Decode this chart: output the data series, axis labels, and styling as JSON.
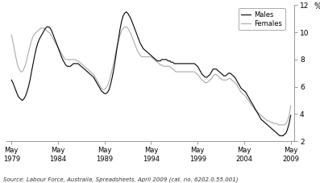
{
  "title": "",
  "ylabel": "%",
  "source_text": "Source: Labour Force, Australia, Spreadsheets, April 2009 (cat. no. 6202.0.55.001)",
  "xlim_start": 1978.9,
  "xlim_end": 2009.8,
  "ylim": [
    2,
    12
  ],
  "yticks": [
    2,
    4,
    6,
    8,
    10,
    12
  ],
  "xtick_labels": [
    "May\n1979",
    "May\n1984",
    "May\n1989",
    "May\n1994",
    "May\n1999",
    "May\n2004",
    "May\n2009"
  ],
  "xtick_positions": [
    1979.42,
    1984.42,
    1989.42,
    1994.42,
    1999.42,
    2004.42,
    2009.42
  ],
  "legend_labels": [
    "Males",
    "Females"
  ],
  "male_color": "#000000",
  "female_color": "#aaaaaa",
  "background_color": "#ffffff",
  "males": [
    [
      1979.42,
      6.5
    ],
    [
      1979.58,
      6.3
    ],
    [
      1979.75,
      6.0
    ],
    [
      1979.92,
      5.7
    ],
    [
      1980.08,
      5.4
    ],
    [
      1980.25,
      5.2
    ],
    [
      1980.42,
      5.1
    ],
    [
      1980.58,
      5.0
    ],
    [
      1980.75,
      5.1
    ],
    [
      1980.92,
      5.3
    ],
    [
      1981.08,
      5.6
    ],
    [
      1981.25,
      6.0
    ],
    [
      1981.42,
      6.5
    ],
    [
      1981.58,
      7.1
    ],
    [
      1981.75,
      7.7
    ],
    [
      1981.92,
      8.3
    ],
    [
      1982.08,
      8.8
    ],
    [
      1982.25,
      9.2
    ],
    [
      1982.42,
      9.5
    ],
    [
      1982.58,
      9.7
    ],
    [
      1982.75,
      9.9
    ],
    [
      1982.92,
      10.1
    ],
    [
      1983.08,
      10.3
    ],
    [
      1983.25,
      10.4
    ],
    [
      1983.42,
      10.4
    ],
    [
      1983.58,
      10.3
    ],
    [
      1983.75,
      10.1
    ],
    [
      1983.92,
      9.8
    ],
    [
      1984.08,
      9.5
    ],
    [
      1984.25,
      9.2
    ],
    [
      1984.42,
      8.9
    ],
    [
      1984.58,
      8.6
    ],
    [
      1984.75,
      8.3
    ],
    [
      1984.92,
      8.0
    ],
    [
      1985.08,
      7.8
    ],
    [
      1985.25,
      7.6
    ],
    [
      1985.42,
      7.5
    ],
    [
      1985.58,
      7.5
    ],
    [
      1985.75,
      7.5
    ],
    [
      1985.92,
      7.6
    ],
    [
      1986.08,
      7.7
    ],
    [
      1986.25,
      7.7
    ],
    [
      1986.42,
      7.7
    ],
    [
      1986.58,
      7.7
    ],
    [
      1986.75,
      7.6
    ],
    [
      1986.92,
      7.5
    ],
    [
      1987.08,
      7.4
    ],
    [
      1987.25,
      7.3
    ],
    [
      1987.42,
      7.2
    ],
    [
      1987.58,
      7.1
    ],
    [
      1987.75,
      7.0
    ],
    [
      1987.92,
      6.9
    ],
    [
      1988.08,
      6.8
    ],
    [
      1988.25,
      6.7
    ],
    [
      1988.42,
      6.5
    ],
    [
      1988.58,
      6.3
    ],
    [
      1988.75,
      6.1
    ],
    [
      1988.92,
      5.9
    ],
    [
      1989.08,
      5.7
    ],
    [
      1989.25,
      5.6
    ],
    [
      1989.42,
      5.5
    ],
    [
      1989.58,
      5.5
    ],
    [
      1989.75,
      5.6
    ],
    [
      1989.92,
      5.8
    ],
    [
      1990.08,
      6.2
    ],
    [
      1990.25,
      6.7
    ],
    [
      1990.42,
      7.3
    ],
    [
      1990.58,
      8.0
    ],
    [
      1990.75,
      8.8
    ],
    [
      1990.92,
      9.5
    ],
    [
      1991.08,
      10.2
    ],
    [
      1991.25,
      10.8
    ],
    [
      1991.42,
      11.2
    ],
    [
      1991.58,
      11.4
    ],
    [
      1991.75,
      11.5
    ],
    [
      1991.92,
      11.4
    ],
    [
      1992.08,
      11.2
    ],
    [
      1992.25,
      11.0
    ],
    [
      1992.42,
      10.7
    ],
    [
      1992.58,
      10.4
    ],
    [
      1992.75,
      10.1
    ],
    [
      1992.92,
      9.8
    ],
    [
      1993.08,
      9.5
    ],
    [
      1993.25,
      9.2
    ],
    [
      1993.42,
      9.0
    ],
    [
      1993.58,
      8.8
    ],
    [
      1993.75,
      8.7
    ],
    [
      1993.92,
      8.6
    ],
    [
      1994.08,
      8.5
    ],
    [
      1994.25,
      8.4
    ],
    [
      1994.42,
      8.3
    ],
    [
      1994.58,
      8.2
    ],
    [
      1994.75,
      8.1
    ],
    [
      1994.92,
      8.0
    ],
    [
      1995.08,
      7.9
    ],
    [
      1995.25,
      7.9
    ],
    [
      1995.42,
      7.9
    ],
    [
      1995.58,
      8.0
    ],
    [
      1995.75,
      8.0
    ],
    [
      1995.92,
      8.0
    ],
    [
      1996.08,
      8.0
    ],
    [
      1996.25,
      7.9
    ],
    [
      1996.42,
      7.9
    ],
    [
      1996.58,
      7.8
    ],
    [
      1996.75,
      7.8
    ],
    [
      1996.92,
      7.7
    ],
    [
      1997.08,
      7.7
    ],
    [
      1997.25,
      7.7
    ],
    [
      1997.42,
      7.7
    ],
    [
      1997.58,
      7.7
    ],
    [
      1997.75,
      7.7
    ],
    [
      1997.92,
      7.7
    ],
    [
      1998.08,
      7.7
    ],
    [
      1998.25,
      7.7
    ],
    [
      1998.42,
      7.7
    ],
    [
      1998.58,
      7.7
    ],
    [
      1998.75,
      7.7
    ],
    [
      1998.92,
      7.7
    ],
    [
      1999.08,
      7.7
    ],
    [
      1999.25,
      7.6
    ],
    [
      1999.42,
      7.5
    ],
    [
      1999.58,
      7.3
    ],
    [
      1999.75,
      7.1
    ],
    [
      1999.92,
      6.9
    ],
    [
      2000.08,
      6.8
    ],
    [
      2000.25,
      6.7
    ],
    [
      2000.42,
      6.7
    ],
    [
      2000.58,
      6.8
    ],
    [
      2000.75,
      6.9
    ],
    [
      2000.92,
      7.1
    ],
    [
      2001.08,
      7.3
    ],
    [
      2001.25,
      7.3
    ],
    [
      2001.42,
      7.3
    ],
    [
      2001.58,
      7.2
    ],
    [
      2001.75,
      7.1
    ],
    [
      2001.92,
      7.0
    ],
    [
      2002.08,
      6.9
    ],
    [
      2002.25,
      6.8
    ],
    [
      2002.42,
      6.8
    ],
    [
      2002.58,
      6.9
    ],
    [
      2002.75,
      7.0
    ],
    [
      2002.92,
      7.0
    ],
    [
      2003.08,
      6.9
    ],
    [
      2003.25,
      6.8
    ],
    [
      2003.42,
      6.7
    ],
    [
      2003.58,
      6.5
    ],
    [
      2003.75,
      6.3
    ],
    [
      2003.92,
      6.1
    ],
    [
      2004.08,
      5.9
    ],
    [
      2004.25,
      5.8
    ],
    [
      2004.42,
      5.7
    ],
    [
      2004.58,
      5.6
    ],
    [
      2004.75,
      5.4
    ],
    [
      2004.92,
      5.2
    ],
    [
      2005.08,
      5.0
    ],
    [
      2005.25,
      4.8
    ],
    [
      2005.42,
      4.6
    ],
    [
      2005.58,
      4.4
    ],
    [
      2005.75,
      4.2
    ],
    [
      2005.92,
      4.0
    ],
    [
      2006.08,
      3.8
    ],
    [
      2006.25,
      3.6
    ],
    [
      2006.42,
      3.5
    ],
    [
      2006.58,
      3.4
    ],
    [
      2006.75,
      3.3
    ],
    [
      2006.92,
      3.2
    ],
    [
      2007.08,
      3.1
    ],
    [
      2007.25,
      3.0
    ],
    [
      2007.42,
      2.9
    ],
    [
      2007.58,
      2.8
    ],
    [
      2007.75,
      2.7
    ],
    [
      2007.92,
      2.6
    ],
    [
      2008.08,
      2.5
    ],
    [
      2008.25,
      2.4
    ],
    [
      2008.42,
      2.4
    ],
    [
      2008.58,
      2.4
    ],
    [
      2008.75,
      2.5
    ],
    [
      2008.92,
      2.6
    ],
    [
      2009.08,
      2.9
    ],
    [
      2009.25,
      3.3
    ],
    [
      2009.42,
      3.9
    ]
  ],
  "females": [
    [
      1979.42,
      9.8
    ],
    [
      1979.58,
      9.3
    ],
    [
      1979.75,
      8.7
    ],
    [
      1979.92,
      8.1
    ],
    [
      1980.08,
      7.6
    ],
    [
      1980.25,
      7.3
    ],
    [
      1980.42,
      7.1
    ],
    [
      1980.58,
      7.1
    ],
    [
      1980.75,
      7.3
    ],
    [
      1980.92,
      7.6
    ],
    [
      1981.08,
      8.0
    ],
    [
      1981.25,
      8.5
    ],
    [
      1981.42,
      9.0
    ],
    [
      1981.58,
      9.4
    ],
    [
      1981.75,
      9.7
    ],
    [
      1981.92,
      9.9
    ],
    [
      1982.08,
      10.0
    ],
    [
      1982.25,
      10.1
    ],
    [
      1982.42,
      10.2
    ],
    [
      1982.58,
      10.3
    ],
    [
      1982.75,
      10.3
    ],
    [
      1982.92,
      10.3
    ],
    [
      1983.08,
      10.2
    ],
    [
      1983.25,
      10.1
    ],
    [
      1983.42,
      10.0
    ],
    [
      1983.58,
      9.9
    ],
    [
      1983.75,
      9.7
    ],
    [
      1983.92,
      9.5
    ],
    [
      1984.08,
      9.3
    ],
    [
      1984.25,
      9.1
    ],
    [
      1984.42,
      8.9
    ],
    [
      1984.58,
      8.7
    ],
    [
      1984.75,
      8.5
    ],
    [
      1984.92,
      8.3
    ],
    [
      1985.08,
      8.1
    ],
    [
      1985.25,
      8.0
    ],
    [
      1985.42,
      8.0
    ],
    [
      1985.58,
      8.0
    ],
    [
      1985.75,
      8.0
    ],
    [
      1985.92,
      8.0
    ],
    [
      1986.08,
      8.0
    ],
    [
      1986.25,
      8.0
    ],
    [
      1986.42,
      7.9
    ],
    [
      1986.58,
      7.9
    ],
    [
      1986.75,
      7.8
    ],
    [
      1986.92,
      7.7
    ],
    [
      1987.08,
      7.6
    ],
    [
      1987.25,
      7.5
    ],
    [
      1987.42,
      7.4
    ],
    [
      1987.58,
      7.3
    ],
    [
      1987.75,
      7.2
    ],
    [
      1987.92,
      7.1
    ],
    [
      1988.08,
      7.0
    ],
    [
      1988.25,
      6.9
    ],
    [
      1988.42,
      6.7
    ],
    [
      1988.58,
      6.5
    ],
    [
      1988.75,
      6.3
    ],
    [
      1988.92,
      6.1
    ],
    [
      1989.08,
      5.9
    ],
    [
      1989.25,
      5.8
    ],
    [
      1989.42,
      5.8
    ],
    [
      1989.58,
      5.9
    ],
    [
      1989.75,
      6.1
    ],
    [
      1989.92,
      6.4
    ],
    [
      1990.08,
      6.8
    ],
    [
      1990.25,
      7.3
    ],
    [
      1990.42,
      7.8
    ],
    [
      1990.58,
      8.4
    ],
    [
      1990.75,
      8.9
    ],
    [
      1990.92,
      9.4
    ],
    [
      1991.08,
      9.8
    ],
    [
      1991.25,
      10.1
    ],
    [
      1991.42,
      10.3
    ],
    [
      1991.58,
      10.4
    ],
    [
      1991.75,
      10.4
    ],
    [
      1991.92,
      10.3
    ],
    [
      1992.08,
      10.1
    ],
    [
      1992.25,
      9.9
    ],
    [
      1992.42,
      9.6
    ],
    [
      1992.58,
      9.3
    ],
    [
      1992.75,
      9.0
    ],
    [
      1992.92,
      8.7
    ],
    [
      1993.08,
      8.5
    ],
    [
      1993.25,
      8.3
    ],
    [
      1993.42,
      8.2
    ],
    [
      1993.58,
      8.2
    ],
    [
      1993.75,
      8.2
    ],
    [
      1993.92,
      8.2
    ],
    [
      1994.08,
      8.2
    ],
    [
      1994.25,
      8.2
    ],
    [
      1994.42,
      8.2
    ],
    [
      1994.58,
      8.1
    ],
    [
      1994.75,
      8.0
    ],
    [
      1994.92,
      7.9
    ],
    [
      1995.08,
      7.8
    ],
    [
      1995.25,
      7.7
    ],
    [
      1995.42,
      7.6
    ],
    [
      1995.58,
      7.6
    ],
    [
      1995.75,
      7.5
    ],
    [
      1995.92,
      7.5
    ],
    [
      1996.08,
      7.5
    ],
    [
      1996.25,
      7.5
    ],
    [
      1996.42,
      7.5
    ],
    [
      1996.58,
      7.4
    ],
    [
      1996.75,
      7.3
    ],
    [
      1996.92,
      7.2
    ],
    [
      1997.08,
      7.1
    ],
    [
      1997.25,
      7.1
    ],
    [
      1997.42,
      7.1
    ],
    [
      1997.58,
      7.1
    ],
    [
      1997.75,
      7.1
    ],
    [
      1997.92,
      7.1
    ],
    [
      1998.08,
      7.1
    ],
    [
      1998.25,
      7.1
    ],
    [
      1998.42,
      7.1
    ],
    [
      1998.58,
      7.1
    ],
    [
      1998.75,
      7.1
    ],
    [
      1998.92,
      7.1
    ],
    [
      1999.08,
      7.1
    ],
    [
      1999.25,
      7.0
    ],
    [
      1999.42,
      6.9
    ],
    [
      1999.58,
      6.8
    ],
    [
      1999.75,
      6.6
    ],
    [
      1999.92,
      6.5
    ],
    [
      2000.08,
      6.4
    ],
    [
      2000.25,
      6.3
    ],
    [
      2000.42,
      6.3
    ],
    [
      2000.58,
      6.4
    ],
    [
      2000.75,
      6.5
    ],
    [
      2000.92,
      6.6
    ],
    [
      2001.08,
      6.8
    ],
    [
      2001.25,
      6.9
    ],
    [
      2001.42,
      6.9
    ],
    [
      2001.58,
      6.8
    ],
    [
      2001.75,
      6.7
    ],
    [
      2001.92,
      6.6
    ],
    [
      2002.08,
      6.5
    ],
    [
      2002.25,
      6.5
    ],
    [
      2002.42,
      6.5
    ],
    [
      2002.58,
      6.5
    ],
    [
      2002.75,
      6.6
    ],
    [
      2002.92,
      6.6
    ],
    [
      2003.08,
      6.5
    ],
    [
      2003.25,
      6.4
    ],
    [
      2003.42,
      6.3
    ],
    [
      2003.58,
      6.2
    ],
    [
      2003.75,
      6.0
    ],
    [
      2003.92,
      5.8
    ],
    [
      2004.08,
      5.6
    ],
    [
      2004.25,
      5.5
    ],
    [
      2004.42,
      5.4
    ],
    [
      2004.58,
      5.3
    ],
    [
      2004.75,
      5.1
    ],
    [
      2004.92,
      5.0
    ],
    [
      2005.08,
      4.8
    ],
    [
      2005.25,
      4.6
    ],
    [
      2005.42,
      4.5
    ],
    [
      2005.58,
      4.3
    ],
    [
      2005.75,
      4.2
    ],
    [
      2005.92,
      4.1
    ],
    [
      2006.08,
      4.0
    ],
    [
      2006.25,
      3.9
    ],
    [
      2006.42,
      3.8
    ],
    [
      2006.58,
      3.7
    ],
    [
      2006.75,
      3.6
    ],
    [
      2006.92,
      3.5
    ],
    [
      2007.08,
      3.5
    ],
    [
      2007.25,
      3.4
    ],
    [
      2007.42,
      3.4
    ],
    [
      2007.58,
      3.3
    ],
    [
      2007.75,
      3.3
    ],
    [
      2007.92,
      3.3
    ],
    [
      2008.08,
      3.2
    ],
    [
      2008.25,
      3.2
    ],
    [
      2008.42,
      3.2
    ],
    [
      2008.58,
      3.2
    ],
    [
      2008.75,
      3.2
    ],
    [
      2008.92,
      3.3
    ],
    [
      2009.08,
      3.5
    ],
    [
      2009.25,
      3.9
    ],
    [
      2009.42,
      4.6
    ]
  ]
}
